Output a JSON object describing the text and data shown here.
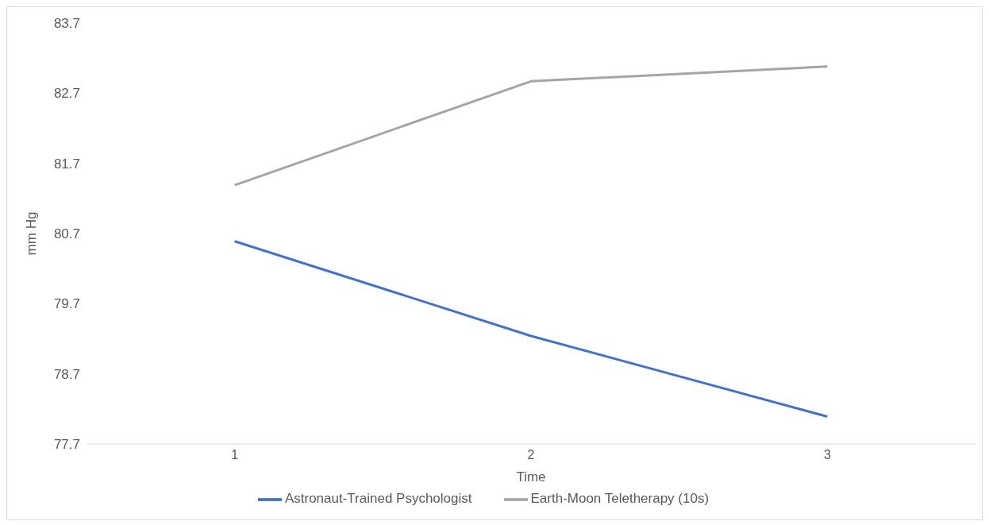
{
  "chart_data": {
    "type": "line",
    "xlabel": "Time",
    "ylabel": "mm Hg",
    "categories": [
      "1",
      "2",
      "3"
    ],
    "series": [
      {
        "name": "Astronaut-Trained Psychologist",
        "color": "#4472c4",
        "values": [
          80.59,
          79.24,
          78.09
        ]
      },
      {
        "name": "Earth-Moon Teletherapy (10s)",
        "color": "#a5a5a5",
        "values": [
          81.39,
          82.87,
          83.08
        ]
      }
    ],
    "ylim": [
      77.7,
      83.7
    ],
    "yticks": [
      77.7,
      78.7,
      79.7,
      80.7,
      81.7,
      82.7,
      83.7
    ],
    "grid": false,
    "legend": "bottom",
    "marker": "none",
    "line_style": "solid"
  }
}
